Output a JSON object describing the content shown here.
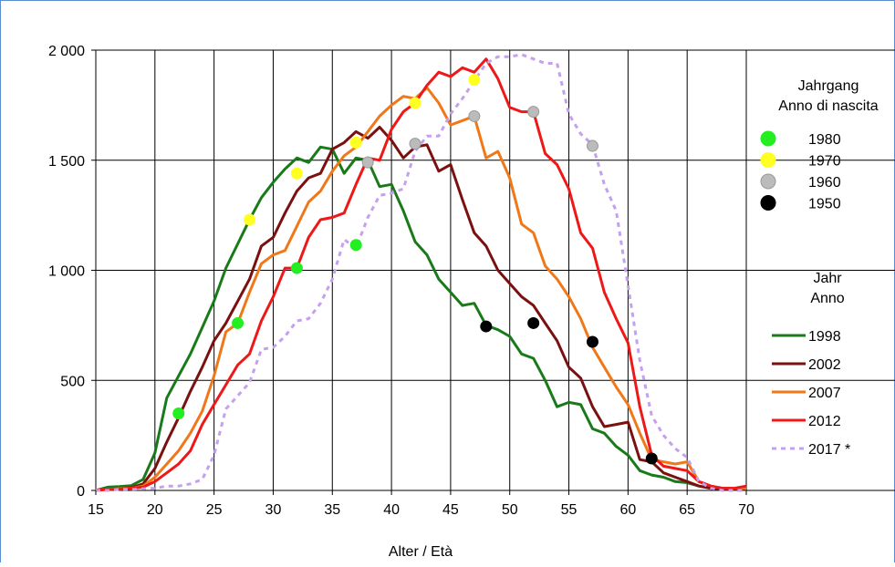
{
  "chart_data": {
    "type": "line",
    "xlabel": "Alter / Età",
    "ylabel": "",
    "xlim": [
      15,
      70
    ],
    "ylim": [
      0,
      2000
    ],
    "x_ticks": [
      "15",
      "20",
      "25",
      "30",
      "35",
      "40",
      "45",
      "50",
      "55",
      "60",
      "65",
      "70"
    ],
    "y_ticks": [
      "0",
      "500",
      "1 000",
      "1 500",
      "2 000"
    ],
    "grid": true,
    "legend_cohort": {
      "title_line1": "Jahrgang",
      "title_line2": "Anno di nascita",
      "entries": [
        {
          "label": "1980",
          "color": "#22ee22"
        },
        {
          "label": "1970",
          "color": "#ffff22"
        },
        {
          "label": "1960",
          "color": "#bbbbbb"
        },
        {
          "label": "1950",
          "color": "#000000"
        }
      ]
    },
    "legend_year": {
      "title_line1": "Jahr",
      "title_line2": "Anno",
      "entries": [
        {
          "label": "1998",
          "color": "#1a7a1a",
          "dashed": false
        },
        {
          "label": "2002",
          "color": "#7a1010",
          "dashed": false
        },
        {
          "label": "2007",
          "color": "#f07818",
          "dashed": false
        },
        {
          "label": "2012",
          "color": "#ee1818",
          "dashed": false
        },
        {
          "label": "2017 *",
          "color": "#c4a0ee",
          "dashed": true
        }
      ]
    },
    "series": [
      {
        "name": "1998",
        "color": "#1a7a1a",
        "dashed": false,
        "points": [
          [
            15,
            0
          ],
          [
            16,
            15
          ],
          [
            17,
            18
          ],
          [
            18,
            22
          ],
          [
            19,
            50
          ],
          [
            20,
            170
          ],
          [
            21,
            420
          ],
          [
            22,
            520
          ],
          [
            23,
            620
          ],
          [
            24,
            740
          ],
          [
            25,
            860
          ],
          [
            26,
            1010
          ],
          [
            27,
            1120
          ],
          [
            28,
            1230
          ],
          [
            29,
            1330
          ],
          [
            30,
            1400
          ],
          [
            31,
            1460
          ],
          [
            32,
            1510
          ],
          [
            33,
            1490
          ],
          [
            34,
            1560
          ],
          [
            35,
            1550
          ],
          [
            36,
            1440
          ],
          [
            37,
            1510
          ],
          [
            38,
            1500
          ],
          [
            39,
            1380
          ],
          [
            40,
            1390
          ],
          [
            41,
            1270
          ],
          [
            42,
            1130
          ],
          [
            43,
            1070
          ],
          [
            44,
            960
          ],
          [
            45,
            900
          ],
          [
            46,
            840
          ],
          [
            47,
            850
          ],
          [
            48,
            750
          ],
          [
            49,
            730
          ],
          [
            50,
            700
          ],
          [
            51,
            620
          ],
          [
            52,
            600
          ],
          [
            53,
            500
          ],
          [
            54,
            380
          ],
          [
            55,
            400
          ],
          [
            56,
            390
          ],
          [
            57,
            280
          ],
          [
            58,
            260
          ],
          [
            59,
            200
          ],
          [
            60,
            160
          ],
          [
            61,
            90
          ],
          [
            62,
            70
          ],
          [
            63,
            60
          ],
          [
            64,
            40
          ],
          [
            65,
            35
          ],
          [
            66,
            20
          ],
          [
            67,
            10
          ],
          [
            68,
            5
          ],
          [
            69,
            5
          ],
          [
            70,
            5
          ]
        ]
      },
      {
        "name": "2002",
        "color": "#7a1010",
        "dashed": false,
        "points": [
          [
            15,
            0
          ],
          [
            16,
            5
          ],
          [
            17,
            8
          ],
          [
            18,
            12
          ],
          [
            19,
            30
          ],
          [
            20,
            100
          ],
          [
            21,
            220
          ],
          [
            22,
            330
          ],
          [
            23,
            450
          ],
          [
            24,
            560
          ],
          [
            25,
            680
          ],
          [
            26,
            760
          ],
          [
            27,
            860
          ],
          [
            28,
            960
          ],
          [
            29,
            1110
          ],
          [
            30,
            1150
          ],
          [
            31,
            1260
          ],
          [
            32,
            1360
          ],
          [
            33,
            1420
          ],
          [
            34,
            1440
          ],
          [
            35,
            1550
          ],
          [
            36,
            1580
          ],
          [
            37,
            1630
          ],
          [
            38,
            1600
          ],
          [
            39,
            1650
          ],
          [
            40,
            1590
          ],
          [
            41,
            1510
          ],
          [
            42,
            1560
          ],
          [
            43,
            1570
          ],
          [
            44,
            1450
          ],
          [
            45,
            1480
          ],
          [
            46,
            1320
          ],
          [
            47,
            1170
          ],
          [
            48,
            1110
          ],
          [
            49,
            1000
          ],
          [
            50,
            940
          ],
          [
            51,
            880
          ],
          [
            52,
            840
          ],
          [
            53,
            760
          ],
          [
            54,
            680
          ],
          [
            55,
            560
          ],
          [
            56,
            510
          ],
          [
            57,
            380
          ],
          [
            58,
            290
          ],
          [
            59,
            300
          ],
          [
            60,
            310
          ],
          [
            61,
            140
          ],
          [
            62,
            130
          ],
          [
            63,
            80
          ],
          [
            64,
            60
          ],
          [
            65,
            40
          ],
          [
            66,
            20
          ],
          [
            67,
            10
          ],
          [
            68,
            5
          ],
          [
            69,
            5
          ],
          [
            70,
            5
          ]
        ]
      },
      {
        "name": "2007",
        "color": "#f07818",
        "dashed": false,
        "points": [
          [
            15,
            0
          ],
          [
            16,
            5
          ],
          [
            17,
            8
          ],
          [
            18,
            10
          ],
          [
            19,
            20
          ],
          [
            20,
            60
          ],
          [
            21,
            120
          ],
          [
            22,
            180
          ],
          [
            23,
            260
          ],
          [
            24,
            360
          ],
          [
            25,
            520
          ],
          [
            26,
            720
          ],
          [
            27,
            760
          ],
          [
            28,
            900
          ],
          [
            29,
            1030
          ],
          [
            30,
            1070
          ],
          [
            31,
            1090
          ],
          [
            32,
            1200
          ],
          [
            33,
            1310
          ],
          [
            34,
            1360
          ],
          [
            35,
            1450
          ],
          [
            36,
            1520
          ],
          [
            37,
            1560
          ],
          [
            38,
            1630
          ],
          [
            39,
            1700
          ],
          [
            40,
            1750
          ],
          [
            41,
            1790
          ],
          [
            42,
            1780
          ],
          [
            43,
            1830
          ],
          [
            44,
            1760
          ],
          [
            45,
            1660
          ],
          [
            46,
            1680
          ],
          [
            47,
            1700
          ],
          [
            48,
            1510
          ],
          [
            49,
            1540
          ],
          [
            50,
            1420
          ],
          [
            51,
            1210
          ],
          [
            52,
            1170
          ],
          [
            53,
            1020
          ],
          [
            54,
            960
          ],
          [
            55,
            880
          ],
          [
            56,
            780
          ],
          [
            57,
            650
          ],
          [
            58,
            560
          ],
          [
            59,
            470
          ],
          [
            60,
            390
          ],
          [
            61,
            260
          ],
          [
            62,
            140
          ],
          [
            63,
            130
          ],
          [
            64,
            120
          ],
          [
            65,
            130
          ],
          [
            66,
            40
          ],
          [
            67,
            20
          ],
          [
            68,
            10
          ],
          [
            69,
            10
          ],
          [
            70,
            10
          ]
        ]
      },
      {
        "name": "2012",
        "color": "#ee1818",
        "dashed": false,
        "points": [
          [
            15,
            0
          ],
          [
            16,
            5
          ],
          [
            17,
            5
          ],
          [
            18,
            10
          ],
          [
            19,
            15
          ],
          [
            20,
            40
          ],
          [
            21,
            80
          ],
          [
            22,
            120
          ],
          [
            23,
            180
          ],
          [
            24,
            300
          ],
          [
            25,
            390
          ],
          [
            26,
            480
          ],
          [
            27,
            570
          ],
          [
            28,
            620
          ],
          [
            29,
            770
          ],
          [
            30,
            880
          ],
          [
            31,
            1010
          ],
          [
            32,
            1010
          ],
          [
            33,
            1150
          ],
          [
            34,
            1230
          ],
          [
            35,
            1240
          ],
          [
            36,
            1260
          ],
          [
            37,
            1390
          ],
          [
            38,
            1510
          ],
          [
            39,
            1500
          ],
          [
            40,
            1640
          ],
          [
            41,
            1720
          ],
          [
            42,
            1760
          ],
          [
            43,
            1840
          ],
          [
            44,
            1900
          ],
          [
            45,
            1880
          ],
          [
            46,
            1920
          ],
          [
            47,
            1900
          ],
          [
            48,
            1960
          ],
          [
            49,
            1870
          ],
          [
            50,
            1740
          ],
          [
            51,
            1720
          ],
          [
            52,
            1720
          ],
          [
            53,
            1530
          ],
          [
            54,
            1480
          ],
          [
            55,
            1370
          ],
          [
            56,
            1170
          ],
          [
            57,
            1100
          ],
          [
            58,
            900
          ],
          [
            59,
            780
          ],
          [
            60,
            670
          ],
          [
            61,
            380
          ],
          [
            62,
            160
          ],
          [
            63,
            110
          ],
          [
            64,
            100
          ],
          [
            65,
            90
          ],
          [
            66,
            40
          ],
          [
            67,
            20
          ],
          [
            68,
            10
          ],
          [
            69,
            10
          ],
          [
            70,
            20
          ]
        ]
      },
      {
        "name": "2017 *",
        "color": "#c4a0ee",
        "dashed": true,
        "points": [
          [
            15,
            0
          ],
          [
            16,
            0
          ],
          [
            17,
            5
          ],
          [
            18,
            5
          ],
          [
            19,
            8
          ],
          [
            20,
            10
          ],
          [
            21,
            20
          ],
          [
            22,
            20
          ],
          [
            23,
            30
          ],
          [
            24,
            50
          ],
          [
            25,
            160
          ],
          [
            26,
            370
          ],
          [
            27,
            430
          ],
          [
            28,
            490
          ],
          [
            29,
            640
          ],
          [
            30,
            650
          ],
          [
            31,
            700
          ],
          [
            32,
            770
          ],
          [
            33,
            780
          ],
          [
            34,
            850
          ],
          [
            35,
            960
          ],
          [
            36,
            1140
          ],
          [
            37,
            1100
          ],
          [
            38,
            1240
          ],
          [
            39,
            1340
          ],
          [
            40,
            1350
          ],
          [
            41,
            1370
          ],
          [
            42,
            1540
          ],
          [
            43,
            1610
          ],
          [
            44,
            1610
          ],
          [
            45,
            1710
          ],
          [
            46,
            1780
          ],
          [
            47,
            1860
          ],
          [
            48,
            1940
          ],
          [
            49,
            1970
          ],
          [
            50,
            1970
          ],
          [
            51,
            1980
          ],
          [
            52,
            1960
          ],
          [
            53,
            1940
          ],
          [
            54,
            1940
          ],
          [
            55,
            1710
          ],
          [
            56,
            1620
          ],
          [
            57,
            1570
          ],
          [
            58,
            1390
          ],
          [
            59,
            1270
          ],
          [
            60,
            930
          ],
          [
            61,
            590
          ],
          [
            62,
            340
          ],
          [
            63,
            250
          ],
          [
            64,
            190
          ],
          [
            65,
            150
          ],
          [
            66,
            40
          ],
          [
            67,
            10
          ],
          [
            68,
            0
          ],
          [
            69,
            0
          ],
          [
            70,
            0
          ]
        ]
      }
    ],
    "cohort_points": [
      {
        "cohort": "1980",
        "color": "#22ee22",
        "points": [
          [
            22,
            350
          ],
          [
            27,
            760
          ],
          [
            32,
            1010
          ],
          [
            37,
            1115
          ]
        ]
      },
      {
        "cohort": "1970",
        "color": "#ffff22",
        "points": [
          [
            28,
            1230
          ],
          [
            32,
            1440
          ],
          [
            37,
            1580
          ],
          [
            42,
            1760
          ],
          [
            47,
            1865
          ]
        ]
      },
      {
        "cohort": "1960",
        "color": "#bbbbbb",
        "points": [
          [
            38,
            1490
          ],
          [
            42,
            1575
          ],
          [
            47,
            1700
          ],
          [
            52,
            1720
          ],
          [
            57,
            1565
          ]
        ]
      },
      {
        "cohort": "1950",
        "color": "#000000",
        "points": [
          [
            48,
            745
          ],
          [
            52,
            760
          ],
          [
            57,
            675
          ],
          [
            62,
            145
          ]
        ]
      }
    ]
  }
}
